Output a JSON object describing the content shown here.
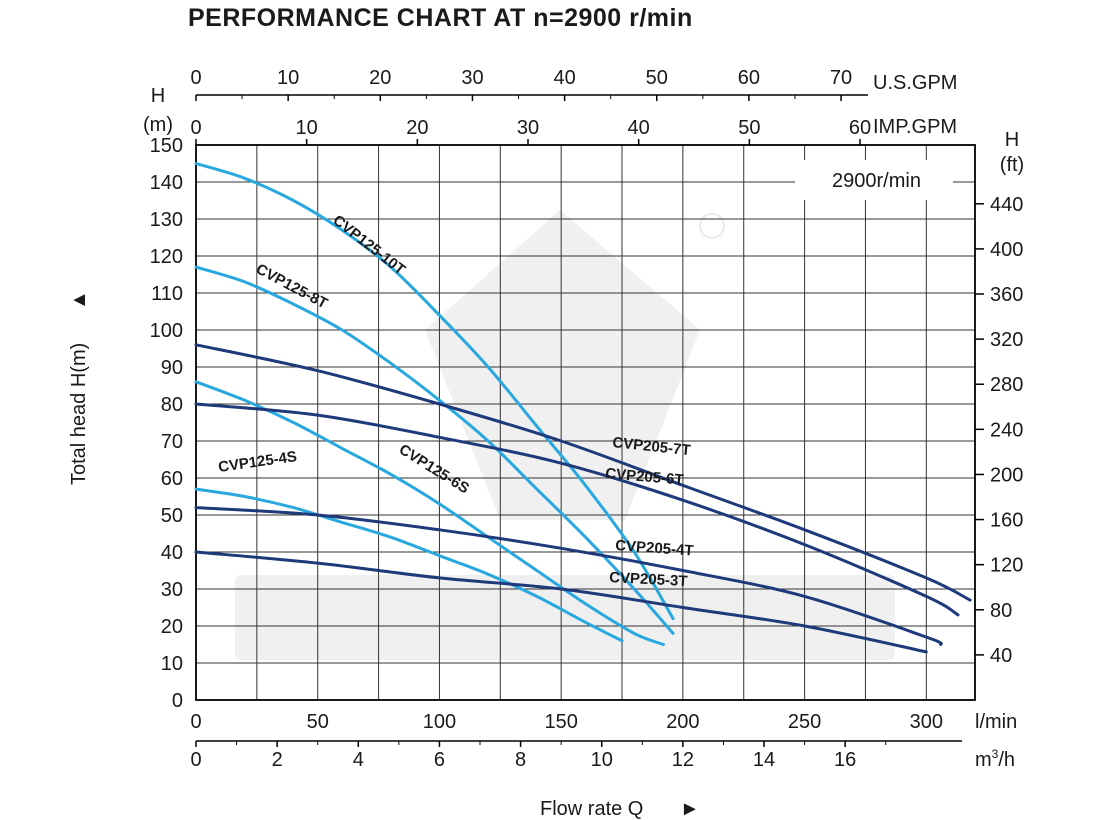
{
  "title": "PERFORMANCE CHART AT n=2900 r/min",
  "speed_note": "2900r/min",
  "chart_data": {
    "type": "line",
    "title": "PERFORMANCE CHART AT n=2900 r/min",
    "ylabel": "Total head H(m)",
    "ylabel_arrow": "▲",
    "xlabel": "Flow rate  Q",
    "xlabel_arrow": "►",
    "left_axis": {
      "label_line1": "H",
      "label_line2": "(m)",
      "range": [
        0,
        150
      ],
      "ticks": [
        "0",
        "10",
        "20",
        "30",
        "40",
        "50",
        "60",
        "70",
        "80",
        "90",
        "100",
        "110",
        "120",
        "130",
        "140",
        "150"
      ]
    },
    "right_axis": {
      "label_line1": "H",
      "label_line2": "(ft)",
      "ticks": [
        "40",
        "80",
        "120",
        "160",
        "200",
        "240",
        "280",
        "320",
        "360",
        "400",
        "440"
      ]
    },
    "bottom_axis_lmin": {
      "unit": "l/min",
      "range": [
        0,
        320
      ],
      "ticks": [
        "0",
        "50",
        "100",
        "150",
        "200",
        "250",
        "300"
      ]
    },
    "bottom_axis_m3h": {
      "unit": "m³/h",
      "unit_base": "m",
      "unit_sup": "3",
      "unit_tail": "/h",
      "ticks": [
        "0",
        "2",
        "4",
        "6",
        "8",
        "10",
        "12",
        "14",
        "16"
      ]
    },
    "top_axis_usgpm": {
      "unit": "U.S.GPM",
      "ticks": [
        "0",
        "10",
        "20",
        "30",
        "40",
        "50",
        "60",
        "70"
      ]
    },
    "top_axis_impgpm": {
      "unit": "IMP.GPM",
      "ticks": [
        "0",
        "10",
        "20",
        "30",
        "40",
        "50",
        "60"
      ]
    },
    "grid": true,
    "series": [
      {
        "name": "CVP125-10T",
        "color": "#29a8e0",
        "x": [
          0,
          20,
          40,
          60,
          80,
          100,
          120,
          140,
          160,
          180,
          196
        ],
        "y": [
          145,
          141,
          135,
          127,
          117,
          104,
          90,
          74,
          58,
          40,
          22
        ]
      },
      {
        "name": "CVP125-8T",
        "color": "#29a8e0",
        "x": [
          0,
          20,
          40,
          60,
          80,
          100,
          120,
          140,
          160,
          180,
          196
        ],
        "y": [
          117,
          113,
          107,
          100,
          91,
          81,
          70,
          57,
          44,
          30,
          18
        ]
      },
      {
        "name": "CVP125-6S",
        "color": "#29a8e0",
        "x": [
          0,
          20,
          40,
          60,
          80,
          100,
          120,
          140,
          160,
          180,
          192
        ],
        "y": [
          86,
          81,
          75,
          68,
          61,
          53,
          44,
          35,
          26,
          18,
          15
        ]
      },
      {
        "name": "CVP125-4S",
        "color": "#29a8e0",
        "x": [
          0,
          20,
          40,
          60,
          80,
          100,
          120,
          140,
          160,
          175
        ],
        "y": [
          57,
          55,
          52,
          48,
          44,
          39,
          34,
          28,
          21,
          16
        ]
      },
      {
        "name": "CVP205-7T",
        "color": "#1e3a7a",
        "x": [
          0,
          50,
          100,
          150,
          200,
          250,
          300,
          318
        ],
        "y": [
          96,
          89,
          80,
          70,
          58,
          46,
          33,
          27
        ]
      },
      {
        "name": "CVP205-6T",
        "color": "#1e3a7a",
        "x": [
          0,
          50,
          100,
          150,
          200,
          250,
          300,
          313
        ],
        "y": [
          80,
          77,
          71,
          64,
          54,
          42,
          28,
          23
        ]
      },
      {
        "name": "CVP205-4T",
        "color": "#1e3a7a",
        "x": [
          0,
          50,
          100,
          150,
          200,
          250,
          300,
          306
        ],
        "y": [
          52,
          50,
          46,
          41,
          35,
          28,
          17,
          15
        ]
      },
      {
        "name": "CVP205-3T",
        "color": "#1e3a7a",
        "x": [
          0,
          50,
          100,
          150,
          200,
          250,
          300
        ],
        "y": [
          40,
          37,
          33,
          30,
          25,
          20,
          13
        ]
      }
    ]
  }
}
